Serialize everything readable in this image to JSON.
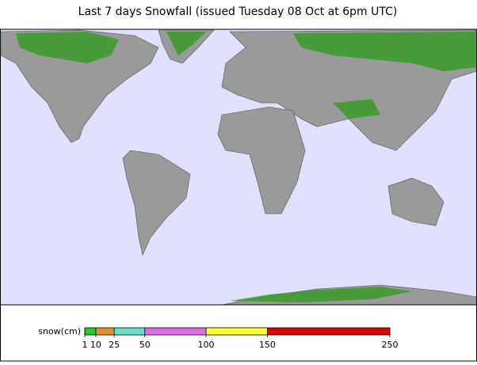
{
  "chart_data": {
    "type": "colorbar",
    "title": "Last 7 days Snowfall (issued Tuesday 08 Oct at 6pm UTC)",
    "label": "snow(cm)",
    "xlim": [
      1,
      250
    ],
    "xticks": [
      1,
      10,
      25,
      50,
      100,
      150,
      250
    ],
    "colors": [
      "#22cc22",
      "#e0902c",
      "#66e0cc",
      "#dd6ee6",
      "#ffff33",
      "#dd0000"
    ]
  }
}
